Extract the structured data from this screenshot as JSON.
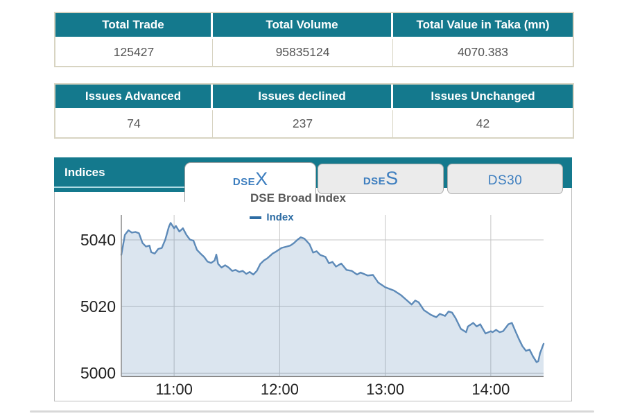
{
  "summary_table": {
    "headers": [
      "Total Trade",
      "Total Volume",
      "Total Value in Taka (mn)"
    ],
    "values": [
      "125427",
      "95835124",
      "4070.383"
    ]
  },
  "issues_table": {
    "headers": [
      "Issues Advanced",
      "Issues declined",
      "Issues Unchanged"
    ],
    "values": [
      "74",
      "237",
      "42"
    ]
  },
  "indices_panel": {
    "label": "Indices",
    "tabs": [
      {
        "prefix": "DSE",
        "suffix": "X",
        "active": true
      },
      {
        "prefix": "DSE",
        "suffix": "S",
        "active": false
      },
      {
        "prefix": "DS30",
        "suffix": "",
        "active": false
      }
    ]
  },
  "chart_data": {
    "type": "area",
    "title": "DSE Broad Index",
    "legend": [
      {
        "label": "Index",
        "color": "#2e6da4"
      }
    ],
    "x_unit": "minutes after 10:30",
    "x_range": [
      0,
      240
    ],
    "y_range": [
      4999,
      5047.5
    ],
    "x_ticks": [
      {
        "t": 30,
        "label": "11:00"
      },
      {
        "t": 90,
        "label": "12:00"
      },
      {
        "t": 150,
        "label": "13:00"
      },
      {
        "t": 210,
        "label": "14:00"
      }
    ],
    "y_ticks": [
      "5000",
      "5020",
      "5040"
    ],
    "grid": true,
    "legend_position": "top-center",
    "line_color": "#5d8ab8",
    "fill_color": "rgba(93,138,184,0.22)",
    "points": [
      [
        0,
        5035.5
      ],
      [
        2,
        5041.5
      ],
      [
        4,
        5042.9
      ],
      [
        6,
        5042.2
      ],
      [
        8,
        5042.4
      ],
      [
        10,
        5042.0
      ],
      [
        12,
        5039.1
      ],
      [
        14,
        5038.0
      ],
      [
        16,
        5038.3
      ],
      [
        17,
        5036.3
      ],
      [
        19,
        5035.9
      ],
      [
        21,
        5037.3
      ],
      [
        23,
        5037.6
      ],
      [
        25,
        5040.1
      ],
      [
        27,
        5043.9
      ],
      [
        28,
        5045.1
      ],
      [
        30,
        5043.5
      ],
      [
        31,
        5044.2
      ],
      [
        33,
        5042.5
      ],
      [
        35,
        5043.5
      ],
      [
        37,
        5041.5
      ],
      [
        39,
        5040.1
      ],
      [
        41,
        5039.8
      ],
      [
        43,
        5037.0
      ],
      [
        45,
        5035.9
      ],
      [
        47,
        5034.9
      ],
      [
        49,
        5033.5
      ],
      [
        51,
        5033.1
      ],
      [
        53,
        5033.8
      ],
      [
        54,
        5035.6
      ],
      [
        55,
        5032.8
      ],
      [
        57,
        5031.7
      ],
      [
        59,
        5032.4
      ],
      [
        61,
        5031.7
      ],
      [
        63,
        5030.7
      ],
      [
        65,
        5031.0
      ],
      [
        67,
        5030.4
      ],
      [
        69,
        5030.7
      ],
      [
        71,
        5029.8
      ],
      [
        73,
        5030.4
      ],
      [
        75,
        5029.6
      ],
      [
        77,
        5030.7
      ],
      [
        79,
        5032.8
      ],
      [
        81,
        5033.8
      ],
      [
        83,
        5034.5
      ],
      [
        86,
        5035.9
      ],
      [
        88,
        5036.5
      ],
      [
        91,
        5037.6
      ],
      [
        94,
        5038.0
      ],
      [
        96,
        5038.3
      ],
      [
        98,
        5039.0
      ],
      [
        100,
        5040.0
      ],
      [
        102,
        5040.8
      ],
      [
        104,
        5040.4
      ],
      [
        107,
        5038.7
      ],
      [
        109,
        5036.2
      ],
      [
        111,
        5036.6
      ],
      [
        113,
        5035.5
      ],
      [
        116,
        5034.9
      ],
      [
        118,
        5033.0
      ],
      [
        120,
        5033.4
      ],
      [
        122,
        5032.0
      ],
      [
        125,
        5032.9
      ],
      [
        128,
        5031.0
      ],
      [
        131,
        5030.7
      ],
      [
        134,
        5029.6
      ],
      [
        136,
        5030.2
      ],
      [
        140,
        5029.3
      ],
      [
        143,
        5029.5
      ],
      [
        146,
        5027.2
      ],
      [
        150,
        5025.8
      ],
      [
        155,
        5024.8
      ],
      [
        159,
        5023.4
      ],
      [
        162,
        5022.0
      ],
      [
        165,
        5020.6
      ],
      [
        167,
        5021.8
      ],
      [
        169,
        5021.3
      ],
      [
        172,
        5018.9
      ],
      [
        176,
        5017.5
      ],
      [
        179,
        5016.8
      ],
      [
        181,
        5017.8
      ],
      [
        184,
        5017.2
      ],
      [
        186,
        5018.5
      ],
      [
        188,
        5018.2
      ],
      [
        190,
        5016.5
      ],
      [
        193,
        5013.3
      ],
      [
        196,
        5012.3
      ],
      [
        197,
        5014.0
      ],
      [
        200,
        5015.1
      ],
      [
        202,
        5014.0
      ],
      [
        204,
        5014.7
      ],
      [
        207,
        5011.9
      ],
      [
        210,
        5012.6
      ],
      [
        211,
        5012.3
      ],
      [
        213,
        5013.0
      ],
      [
        215,
        5012.3
      ],
      [
        217,
        5012.6
      ],
      [
        220,
        5014.7
      ],
      [
        222,
        5015.1
      ],
      [
        224,
        5012.6
      ],
      [
        226,
        5010.2
      ],
      [
        228,
        5008.1
      ],
      [
        230,
        5006.7
      ],
      [
        232,
        5007.1
      ],
      [
        234,
        5005.0
      ],
      [
        236,
        5003.3
      ],
      [
        237,
        5003.6
      ],
      [
        238,
        5006.0
      ],
      [
        240,
        5008.8
      ]
    ]
  },
  "colors": {
    "teal_header": "#14798d",
    "table_border": "#d8d4c2",
    "tab_text": "#3d7ebf",
    "title_text": "#595959",
    "legend_blue": "#2e6da4",
    "line_blue": "#5d8ab8",
    "grid": "#c5c5c5",
    "axis": "#8a8a8a",
    "tick_text": "#222222"
  }
}
